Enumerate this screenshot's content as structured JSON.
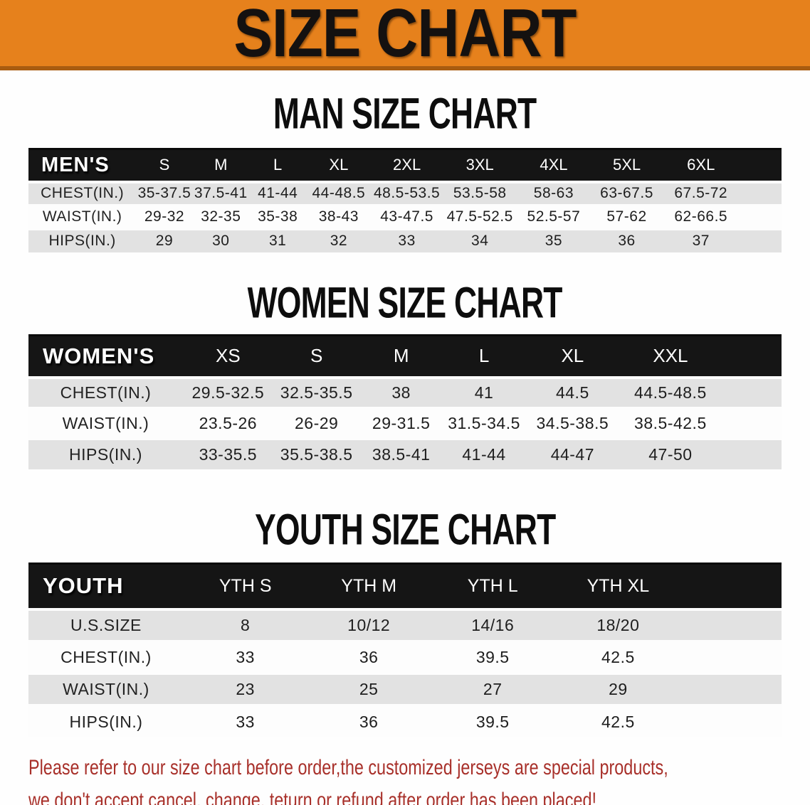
{
  "banner": {
    "title": "SIZE CHART"
  },
  "colors": {
    "banner_orange": "#e6811c",
    "banner_edge": "#a85c10",
    "header_black": "#151515",
    "row_gray": "#e2e2e2",
    "disclaimer_red": "#a8302a"
  },
  "sections": [
    {
      "heading": "MAN SIZE CHART",
      "corner": "MEN'S",
      "sizes": [
        "S",
        "M",
        "L",
        "XL",
        "2XL",
        "3XL",
        "4XL",
        "5XL",
        "6XL"
      ],
      "rows": [
        {
          "label": "CHEST(IN.)",
          "values": [
            "35-37.5",
            "37.5-41",
            "41-44",
            "44-48.5",
            "48.5-53.5",
            "53.5-58",
            "58-63",
            "63-67.5",
            "67.5-72"
          ]
        },
        {
          "label": "WAIST(IN.)",
          "values": [
            "29-32",
            "32-35",
            "35-38",
            "38-43",
            "43-47.5",
            "47.5-52.5",
            "52.5-57",
            "57-62",
            "62-66.5"
          ]
        },
        {
          "label": "HIPS(IN.)",
          "values": [
            "29",
            "30",
            "31",
            "32",
            "33",
            "34",
            "35",
            "36",
            "37"
          ]
        }
      ]
    },
    {
      "heading": "WOMEN SIZE CHART",
      "corner": "WOMEN'S",
      "sizes": [
        "XS",
        "S",
        "M",
        "L",
        "XL",
        "XXL"
      ],
      "rows": [
        {
          "label": "CHEST(IN.)",
          "values": [
            "29.5-32.5",
            "32.5-35.5",
            "38",
            "41",
            "44.5",
            "44.5-48.5"
          ]
        },
        {
          "label": "WAIST(IN.)",
          "values": [
            "23.5-26",
            "26-29",
            "29-31.5",
            "31.5-34.5",
            "34.5-38.5",
            "38.5-42.5"
          ]
        },
        {
          "label": "HIPS(IN.)",
          "values": [
            "33-35.5",
            "35.5-38.5",
            "38.5-41",
            "41-44",
            "44-47",
            "47-50"
          ]
        }
      ]
    },
    {
      "heading": "YOUTH SIZE CHART",
      "corner": "YOUTH",
      "sizes": [
        "YTH S",
        "YTH M",
        "YTH L",
        "YTH XL"
      ],
      "rows": [
        {
          "label": "U.S.SIZE",
          "values": [
            "8",
            "10/12",
            "14/16",
            "18/20"
          ]
        },
        {
          "label": "CHEST(IN.)",
          "values": [
            "33",
            "36",
            "39.5",
            "42.5"
          ]
        },
        {
          "label": "WAIST(IN.)",
          "values": [
            "23",
            "25",
            "27",
            "29"
          ]
        },
        {
          "label": "HIPS(IN.)",
          "values": [
            "33",
            "36",
            "39.5",
            "42.5"
          ]
        }
      ]
    }
  ],
  "disclaimer": {
    "line1": "Please refer to our size chart before order,the customized jerseys are special products,",
    "line2": "we don't accept cancel, change, teturn or refund after order has been placed!"
  }
}
